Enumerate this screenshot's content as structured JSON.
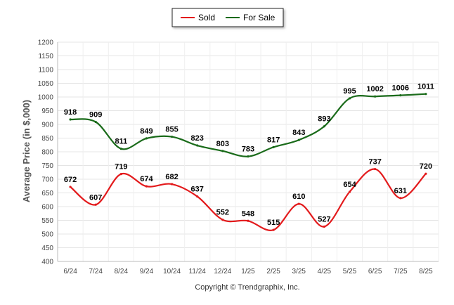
{
  "chart_data": {
    "type": "line",
    "title": "",
    "xlabel": "",
    "ylabel": "Average Price (in $,000)",
    "categories": [
      "6/24",
      "7/24",
      "8/24",
      "9/24",
      "10/24",
      "11/24",
      "12/24",
      "1/25",
      "2/25",
      "3/25",
      "4/25",
      "5/25",
      "6/25",
      "7/25",
      "8/25"
    ],
    "series": [
      {
        "name": "Sold",
        "color": "#e31a1c",
        "values": [
          672,
          607,
          719,
          674,
          682,
          637,
          552,
          548,
          515,
          610,
          527,
          654,
          737,
          631,
          720
        ]
      },
      {
        "name": "For Sale",
        "color": "#1a6b1a",
        "values": [
          918,
          909,
          811,
          849,
          855,
          823,
          803,
          783,
          817,
          843,
          893,
          995,
          1002,
          1006,
          1011
        ]
      }
    ],
    "ylim": [
      400,
      1200
    ],
    "yticks": [
      400,
      450,
      500,
      550,
      600,
      650,
      700,
      750,
      800,
      850,
      900,
      950,
      1000,
      1050,
      1100,
      1150,
      1200
    ],
    "grid": true,
    "legend_position": "top-center",
    "footer": "Copyright © Trendgraphix, Inc."
  }
}
